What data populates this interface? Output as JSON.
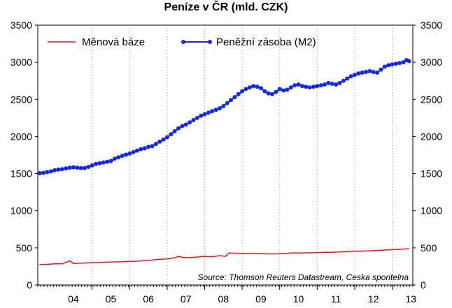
{
  "chart_data": {
    "type": "line",
    "title": "Peníze v ČR (mld. CZK)",
    "source": "Source: Thomson Reuters Datastream, Ceska sporitelna",
    "ylim": [
      0,
      3500
    ],
    "yticks": [
      0,
      500,
      1000,
      1500,
      2000,
      2500,
      3000,
      3500
    ],
    "y_tick_labels_both_sides": true,
    "xlim": [
      2003.55,
      2013.55
    ],
    "x_tick_labels": [
      {
        "label": "04",
        "x": 2004.5
      },
      {
        "label": "05",
        "x": 2005.5
      },
      {
        "label": "06",
        "x": 2006.5
      },
      {
        "label": "07",
        "x": 2007.5
      },
      {
        "label": "08",
        "x": 2008.5
      },
      {
        "label": "09",
        "x": 2009.5
      },
      {
        "label": "10",
        "x": 2010.5
      },
      {
        "label": "11",
        "x": 2011.5
      },
      {
        "label": "12",
        "x": 2012.5
      },
      {
        "label": "13",
        "x": 2013.5
      }
    ],
    "x_grid_at": [
      2005,
      2006,
      2007,
      2008,
      2009,
      2010,
      2011,
      2012,
      2013
    ],
    "grid": "vertical dotted",
    "legend_position": "top-left",
    "series": [
      {
        "name": "Měnová báze",
        "color": "#e8141c",
        "markers": false,
        "points": [
          [
            2003.6,
            275
          ],
          [
            2003.8,
            278
          ],
          [
            2004.0,
            285
          ],
          [
            2004.2,
            285
          ],
          [
            2004.4,
            325
          ],
          [
            2004.5,
            290
          ],
          [
            2004.8,
            295
          ],
          [
            2005.0,
            300
          ],
          [
            2005.2,
            302
          ],
          [
            2005.5,
            310
          ],
          [
            2005.8,
            312
          ],
          [
            2006.0,
            318
          ],
          [
            2006.2,
            320
          ],
          [
            2006.5,
            330
          ],
          [
            2006.8,
            345
          ],
          [
            2007.0,
            350
          ],
          [
            2007.2,
            365
          ],
          [
            2007.3,
            385
          ],
          [
            2007.45,
            368
          ],
          [
            2007.6,
            370
          ],
          [
            2007.8,
            375
          ],
          [
            2008.0,
            385
          ],
          [
            2008.2,
            378
          ],
          [
            2008.4,
            395
          ],
          [
            2008.55,
            385
          ],
          [
            2008.65,
            430
          ],
          [
            2008.8,
            428
          ],
          [
            2009.0,
            425
          ],
          [
            2009.3,
            425
          ],
          [
            2009.6,
            420
          ],
          [
            2009.8,
            418
          ],
          [
            2010.0,
            420
          ],
          [
            2010.3,
            430
          ],
          [
            2010.6,
            432
          ],
          [
            2011.0,
            435
          ],
          [
            2011.2,
            440
          ],
          [
            2011.4,
            440
          ],
          [
            2011.6,
            445
          ],
          [
            2011.8,
            450
          ],
          [
            2012.0,
            455
          ],
          [
            2012.2,
            455
          ],
          [
            2012.4,
            460
          ],
          [
            2012.6,
            465
          ],
          [
            2012.8,
            470
          ],
          [
            2013.0,
            475
          ],
          [
            2013.2,
            480
          ],
          [
            2013.35,
            485
          ],
          [
            2013.45,
            490
          ]
        ]
      },
      {
        "name": "Peněžní zásoba (M2)",
        "color": "#1428e8",
        "markers": true,
        "points": [
          [
            2003.6,
            1505
          ],
          [
            2003.7,
            1510
          ],
          [
            2003.8,
            1520
          ],
          [
            2003.9,
            1530
          ],
          [
            2004.0,
            1545
          ],
          [
            2004.1,
            1555
          ],
          [
            2004.2,
            1560
          ],
          [
            2004.3,
            1570
          ],
          [
            2004.4,
            1580
          ],
          [
            2004.5,
            1585
          ],
          [
            2004.6,
            1580
          ],
          [
            2004.7,
            1575
          ],
          [
            2004.8,
            1575
          ],
          [
            2004.9,
            1590
          ],
          [
            2005.0,
            1610
          ],
          [
            2005.1,
            1630
          ],
          [
            2005.2,
            1640
          ],
          [
            2005.3,
            1650
          ],
          [
            2005.4,
            1660
          ],
          [
            2005.5,
            1670
          ],
          [
            2005.6,
            1700
          ],
          [
            2005.7,
            1720
          ],
          [
            2005.8,
            1740
          ],
          [
            2005.9,
            1755
          ],
          [
            2006.0,
            1770
          ],
          [
            2006.1,
            1790
          ],
          [
            2006.2,
            1810
          ],
          [
            2006.3,
            1830
          ],
          [
            2006.4,
            1840
          ],
          [
            2006.5,
            1860
          ],
          [
            2006.6,
            1870
          ],
          [
            2006.7,
            1900
          ],
          [
            2006.8,
            1930
          ],
          [
            2006.9,
            1960
          ],
          [
            2007.0,
            1990
          ],
          [
            2007.1,
            2030
          ],
          [
            2007.2,
            2070
          ],
          [
            2007.3,
            2110
          ],
          [
            2007.4,
            2140
          ],
          [
            2007.5,
            2160
          ],
          [
            2007.6,
            2190
          ],
          [
            2007.7,
            2220
          ],
          [
            2007.8,
            2250
          ],
          [
            2007.9,
            2280
          ],
          [
            2008.0,
            2300
          ],
          [
            2008.1,
            2320
          ],
          [
            2008.2,
            2340
          ],
          [
            2008.3,
            2360
          ],
          [
            2008.4,
            2380
          ],
          [
            2008.5,
            2410
          ],
          [
            2008.6,
            2450
          ],
          [
            2008.7,
            2490
          ],
          [
            2008.8,
            2530
          ],
          [
            2008.9,
            2570
          ],
          [
            2009.0,
            2610
          ],
          [
            2009.1,
            2640
          ],
          [
            2009.2,
            2660
          ],
          [
            2009.3,
            2680
          ],
          [
            2009.4,
            2670
          ],
          [
            2009.5,
            2650
          ],
          [
            2009.6,
            2610
          ],
          [
            2009.7,
            2580
          ],
          [
            2009.8,
            2570
          ],
          [
            2009.9,
            2600
          ],
          [
            2010.0,
            2640
          ],
          [
            2010.1,
            2620
          ],
          [
            2010.2,
            2630
          ],
          [
            2010.3,
            2660
          ],
          [
            2010.4,
            2690
          ],
          [
            2010.5,
            2700
          ],
          [
            2010.6,
            2680
          ],
          [
            2010.7,
            2670
          ],
          [
            2010.8,
            2660
          ],
          [
            2010.9,
            2670
          ],
          [
            2011.0,
            2680
          ],
          [
            2011.1,
            2690
          ],
          [
            2011.2,
            2700
          ],
          [
            2011.3,
            2720
          ],
          [
            2011.4,
            2710
          ],
          [
            2011.5,
            2700
          ],
          [
            2011.6,
            2720
          ],
          [
            2011.7,
            2750
          ],
          [
            2011.8,
            2780
          ],
          [
            2011.9,
            2810
          ],
          [
            2012.0,
            2830
          ],
          [
            2012.1,
            2850
          ],
          [
            2012.2,
            2860
          ],
          [
            2012.3,
            2870
          ],
          [
            2012.4,
            2880
          ],
          [
            2012.5,
            2870
          ],
          [
            2012.6,
            2860
          ],
          [
            2012.7,
            2900
          ],
          [
            2012.8,
            2940
          ],
          [
            2012.9,
            2960
          ],
          [
            2013.0,
            2970
          ],
          [
            2013.1,
            2980
          ],
          [
            2013.2,
            2990
          ],
          [
            2013.3,
            3000
          ],
          [
            2013.38,
            3030
          ],
          [
            2013.45,
            3015
          ]
        ]
      }
    ]
  }
}
